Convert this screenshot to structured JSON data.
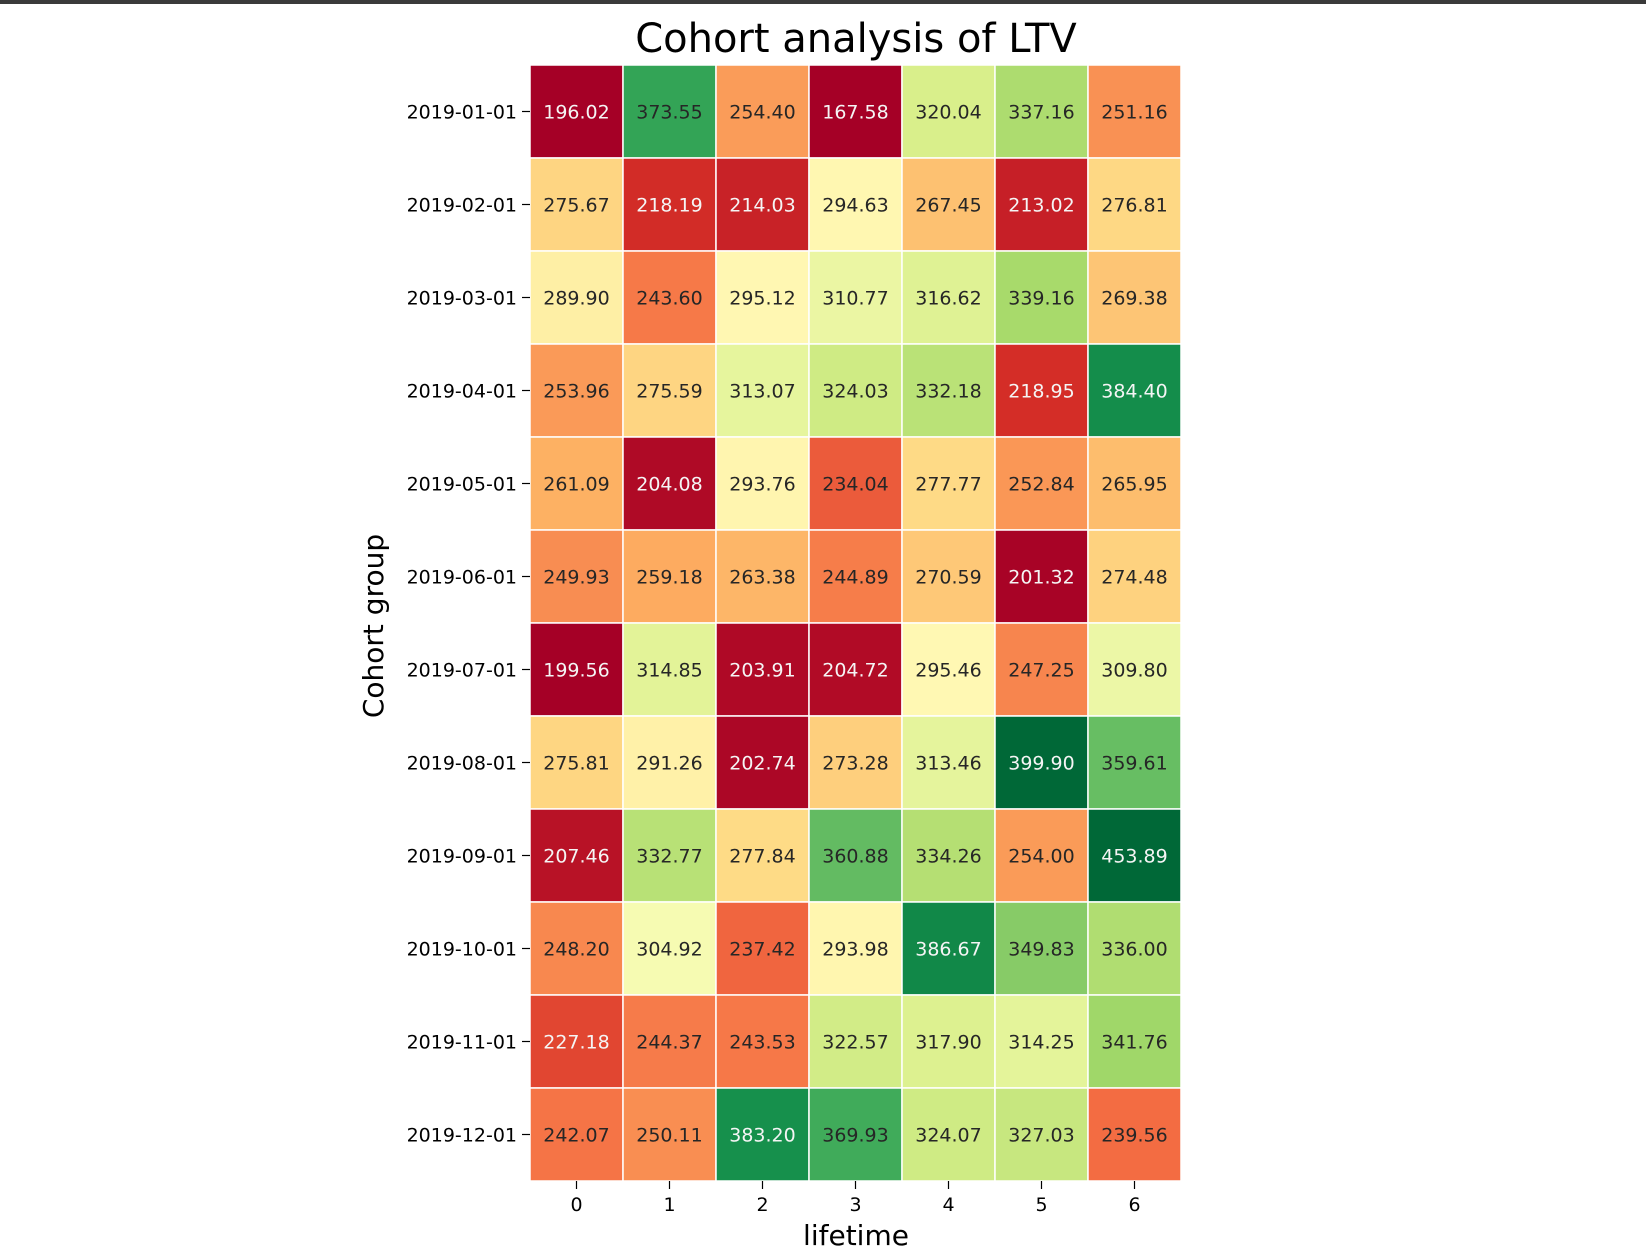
{
  "chart_data": {
    "type": "heatmap",
    "title": "Cohort analysis of LTV",
    "xlabel": "lifetime",
    "ylabel": "Cohort group",
    "colormap": "RdYlGn",
    "color_range": [
      200,
      400
    ],
    "annotation_format": "0.00",
    "columns": [
      "0",
      "1",
      "2",
      "3",
      "4",
      "5",
      "6"
    ],
    "rows": [
      "2019-01-01",
      "2019-02-01",
      "2019-03-01",
      "2019-04-01",
      "2019-05-01",
      "2019-06-01",
      "2019-07-01",
      "2019-08-01",
      "2019-09-01",
      "2019-10-01",
      "2019-11-01",
      "2019-12-01"
    ],
    "values": [
      [
        196.02,
        373.55,
        254.4,
        167.58,
        320.04,
        337.16,
        251.16
      ],
      [
        275.67,
        218.19,
        214.03,
        294.63,
        267.45,
        213.02,
        276.81
      ],
      [
        289.9,
        243.6,
        295.12,
        310.77,
        316.62,
        339.16,
        269.38
      ],
      [
        253.96,
        275.59,
        313.07,
        324.03,
        332.18,
        218.95,
        384.4
      ],
      [
        261.09,
        204.08,
        293.76,
        234.04,
        277.77,
        252.84,
        265.95
      ],
      [
        249.93,
        259.18,
        263.38,
        244.89,
        270.59,
        201.32,
        274.48
      ],
      [
        199.56,
        314.85,
        203.91,
        204.72,
        295.46,
        247.25,
        309.8
      ],
      [
        275.81,
        291.26,
        202.74,
        273.28,
        313.46,
        399.9,
        359.61
      ],
      [
        207.46,
        332.77,
        277.84,
        360.88,
        334.26,
        254.0,
        453.89
      ],
      [
        248.2,
        304.92,
        237.42,
        293.98,
        386.67,
        349.83,
        336.0
      ],
      [
        227.18,
        244.37,
        243.53,
        322.57,
        317.9,
        314.25,
        341.76
      ],
      [
        242.07,
        250.11,
        383.2,
        369.93,
        324.07,
        327.03,
        239.56
      ]
    ]
  }
}
